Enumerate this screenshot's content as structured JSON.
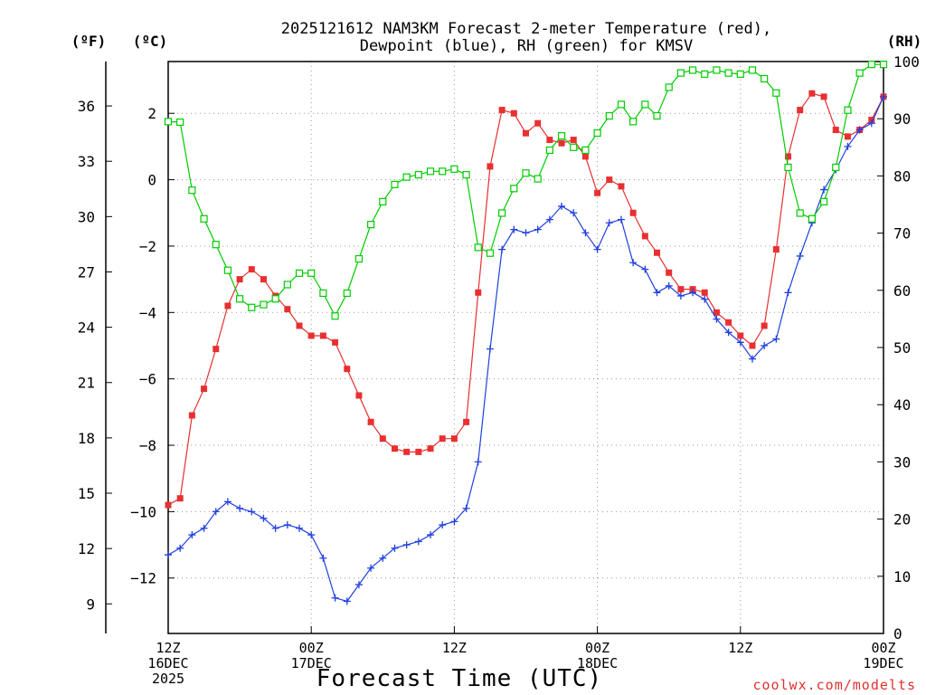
{
  "chart_data": {
    "type": "line",
    "title_line1": "2025121612 NAM3KM Forecast 2-meter Temperature (red),",
    "title_line2": "Dewpoint (blue), RH (green) for KMSV",
    "xlabel": "Forecast Time (UTC)",
    "credit": "coolwx.com/modelts",
    "units": {
      "left_f": "(ºF)",
      "left_c": "(ºC)",
      "right": "(RH)"
    },
    "ylim_c": [
      -13.67,
      3.56
    ],
    "ylim_rh": [
      0,
      100
    ],
    "x_range_hours": [
      0,
      60
    ],
    "x_ticks": [
      {
        "hour": 0,
        "lines": [
          "12Z",
          "16DEC",
          "2025"
        ]
      },
      {
        "hour": 12,
        "lines": [
          "00Z",
          "17DEC"
        ]
      },
      {
        "hour": 24,
        "lines": [
          "12Z"
        ]
      },
      {
        "hour": 36,
        "lines": [
          "00Z",
          "18DEC"
        ]
      },
      {
        "hour": 48,
        "lines": [
          "12Z"
        ]
      },
      {
        "hour": 60,
        "lines": [
          "00Z",
          "19DEC"
        ]
      }
    ],
    "y_ticks_c": [
      {
        "value": 2,
        "label": "2"
      },
      {
        "value": 0,
        "label": "0"
      },
      {
        "value": -2,
        "label": "−2"
      },
      {
        "value": -4,
        "label": "−4"
      },
      {
        "value": -6,
        "label": "−6"
      },
      {
        "value": -8,
        "label": "−8"
      },
      {
        "value": -10,
        "label": "−10"
      },
      {
        "value": -12,
        "label": "−12"
      }
    ],
    "y_ticks_f": [
      {
        "value": 36,
        "label": "36"
      },
      {
        "value": 33,
        "label": "33"
      },
      {
        "value": 30,
        "label": "30"
      },
      {
        "value": 27,
        "label": "27"
      },
      {
        "value": 24,
        "label": "24"
      },
      {
        "value": 21,
        "label": "21"
      },
      {
        "value": 18,
        "label": "18"
      },
      {
        "value": 15,
        "label": "15"
      },
      {
        "value": 12,
        "label": "12"
      },
      {
        "value": 9,
        "label": "9"
      }
    ],
    "y_ticks_rh": [
      {
        "value": 100,
        "label": "100"
      },
      {
        "value": 90,
        "label": "90"
      },
      {
        "value": 80,
        "label": "80"
      },
      {
        "value": 70,
        "label": "70"
      },
      {
        "value": 60,
        "label": "60"
      },
      {
        "value": 50,
        "label": "50"
      },
      {
        "value": 40,
        "label": "40"
      },
      {
        "value": 30,
        "label": "30"
      },
      {
        "value": 20,
        "label": "20"
      },
      {
        "value": 10,
        "label": "10"
      },
      {
        "value": 0,
        "label": "0"
      }
    ],
    "series": [
      {
        "name": "Temperature",
        "unit": "C",
        "color": "#e83030",
        "marker": "filled-square",
        "values": [
          -9.8,
          -9.6,
          -7.1,
          -6.3,
          -5.1,
          -3.8,
          -3.0,
          -2.7,
          -3.0,
          -3.5,
          -3.9,
          -4.4,
          -4.7,
          -4.7,
          -4.9,
          -5.7,
          -6.5,
          -7.3,
          -7.8,
          -8.1,
          -8.2,
          -8.2,
          -8.1,
          -7.8,
          -7.8,
          -7.3,
          -3.4,
          0.4,
          2.1,
          2.0,
          1.4,
          1.7,
          1.2,
          1.1,
          1.2,
          0.7,
          -0.4,
          0.0,
          -0.2,
          -1.0,
          -1.7,
          -2.2,
          -2.8,
          -3.3,
          -3.3,
          -3.4,
          -4.0,
          -4.3,
          -4.7,
          -5.0,
          -4.4,
          -2.1,
          0.7,
          2.1,
          2.6,
          2.5,
          1.5,
          1.3,
          1.5,
          1.8,
          2.5
        ]
      },
      {
        "name": "Dewpoint",
        "unit": "C",
        "color": "#2040e0",
        "marker": "plus",
        "values": [
          -11.3,
          -11.1,
          -10.7,
          -10.5,
          -10.0,
          -9.7,
          -9.9,
          -10.0,
          -10.2,
          -10.5,
          -10.4,
          -10.5,
          -10.7,
          -11.4,
          -12.6,
          -12.7,
          -12.2,
          -11.7,
          -11.4,
          -11.1,
          -11.0,
          -10.9,
          -10.7,
          -10.4,
          -10.3,
          -9.9,
          -8.5,
          -5.1,
          -2.1,
          -1.5,
          -1.6,
          -1.5,
          -1.2,
          -0.8,
          -1.0,
          -1.6,
          -2.1,
          -1.3,
          -1.2,
          -2.5,
          -2.7,
          -3.4,
          -3.2,
          -3.5,
          -3.4,
          -3.6,
          -4.2,
          -4.6,
          -4.9,
          -5.4,
          -5.0,
          -4.8,
          -3.4,
          -2.3,
          -1.3,
          -0.3,
          0.3,
          1.0,
          1.5,
          1.7,
          2.5
        ]
      },
      {
        "name": "RH",
        "unit": "%",
        "color": "#00cc00",
        "marker": "open-square",
        "values": [
          89.5,
          89.4,
          77.5,
          72.5,
          68.0,
          63.5,
          58.5,
          57.0,
          57.5,
          58.5,
          61.0,
          63.0,
          63.0,
          59.5,
          55.5,
          59.5,
          65.5,
          71.5,
          75.5,
          78.5,
          79.8,
          80.2,
          80.8,
          80.8,
          81.2,
          80.2,
          67.5,
          66.5,
          73.5,
          77.8,
          80.5,
          79.5,
          84.5,
          87.0,
          85.0,
          84.5,
          87.5,
          90.5,
          92.5,
          89.5,
          92.5,
          90.5,
          95.5,
          98.0,
          98.5,
          97.8,
          98.5,
          98.0,
          97.8,
          98.5,
          97.0,
          94.5,
          81.5,
          73.5,
          72.5,
          75.5,
          81.5,
          91.5,
          98.0,
          99.5,
          99.5
        ]
      }
    ]
  }
}
